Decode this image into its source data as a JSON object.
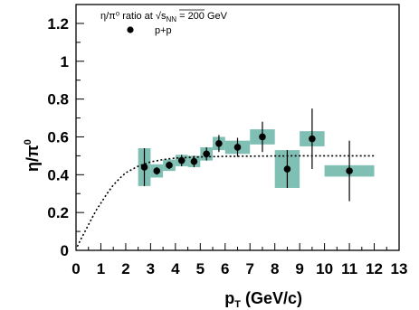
{
  "chart_data": {
    "type": "scatter",
    "title": "",
    "xlabel": "p_T (GeV/c)",
    "ylabel": "η/π⁰",
    "xlim": [
      0,
      13
    ],
    "ylim": [
      0,
      1.3
    ],
    "xticks": [
      "0",
      "1",
      "2",
      "3",
      "4",
      "5",
      "6",
      "7",
      "8",
      "9",
      "10",
      "11",
      "12",
      "13"
    ],
    "yticks": [
      "0",
      "0.2",
      "0.4",
      "0.6",
      "0.8",
      "1",
      "1.2"
    ],
    "legend": {
      "header_prefix": "η/π⁰ ratio at ",
      "header_sqrt_label": "s",
      "header_sqrt_sub": "NN",
      "header_suffix": " = 200 GeV",
      "entry": "p+p",
      "placement": "top-left"
    },
    "series": [
      {
        "name": "p+p",
        "x": [
          2.75,
          3.25,
          3.75,
          4.25,
          4.75,
          5.25,
          5.75,
          6.5,
          7.5,
          8.5,
          9.5,
          11.0
        ],
        "y": [
          0.44,
          0.42,
          0.45,
          0.475,
          0.47,
          0.51,
          0.565,
          0.545,
          0.6,
          0.43,
          0.59,
          0.42
        ],
        "stat_err": [
          0.1,
          0.02,
          0.02,
          0.03,
          0.03,
          0.035,
          0.045,
          0.05,
          0.08,
          0.1,
          0.16,
          0.16
        ],
        "sys_err": [
          0.1,
          0.035,
          0.03,
          0.03,
          0.03,
          0.035,
          0.035,
          0.035,
          0.04,
          0.1,
          0.04,
          0.03
        ],
        "sys_halfwidth": [
          0.25,
          0.25,
          0.25,
          0.25,
          0.25,
          0.25,
          0.25,
          0.5,
          0.5,
          0.5,
          0.5,
          1.0
        ]
      }
    ],
    "fit": {
      "style": "dotted",
      "plateau": 0.5,
      "x": [
        0.05,
        0.2,
        0.4,
        0.6,
        0.8,
        1.0,
        1.25,
        1.5,
        1.75,
        2.0,
        2.5,
        3.0,
        3.5,
        4.0,
        5.0,
        6.0,
        7.0,
        8.0,
        9.0,
        10.0,
        11.0,
        12.0
      ],
      "y": [
        0.02,
        0.06,
        0.11,
        0.16,
        0.21,
        0.25,
        0.3,
        0.345,
        0.38,
        0.41,
        0.445,
        0.468,
        0.48,
        0.488,
        0.494,
        0.497,
        0.498,
        0.499,
        0.5,
        0.5,
        0.5,
        0.5
      ]
    },
    "colors": {
      "marker": "#000000",
      "sys_band": "#7fbfb4",
      "fit_line": "#000000"
    }
  }
}
